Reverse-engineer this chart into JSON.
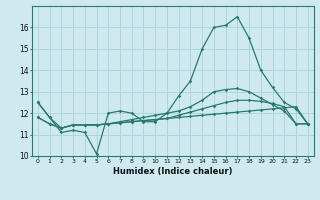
{
  "title": "",
  "xlabel": "Humidex (Indice chaleur)",
  "background_color": "#ceeaf0",
  "grid_color": "#aed4dc",
  "line_color": "#2a7a6a",
  "xlim": [
    -0.5,
    23.5
  ],
  "ylim": [
    10,
    17
  ],
  "xticks": [
    0,
    1,
    2,
    3,
    4,
    5,
    6,
    7,
    8,
    9,
    10,
    11,
    12,
    13,
    14,
    15,
    16,
    17,
    18,
    19,
    20,
    21,
    22,
    23
  ],
  "yticks": [
    10,
    11,
    12,
    13,
    14,
    15,
    16
  ],
  "series1_y": [
    12.5,
    11.8,
    11.1,
    11.2,
    11.1,
    10.1,
    12.0,
    12.1,
    12.0,
    11.6,
    11.6,
    12.0,
    12.8,
    13.5,
    15.0,
    16.0,
    16.1,
    16.5,
    15.5,
    14.0,
    13.2,
    12.5,
    12.2,
    11.5
  ],
  "series2_y": [
    11.8,
    11.5,
    11.3,
    11.45,
    11.45,
    11.45,
    11.5,
    11.55,
    11.6,
    11.65,
    11.7,
    11.75,
    11.8,
    11.85,
    11.9,
    11.95,
    12.0,
    12.05,
    12.1,
    12.15,
    12.2,
    12.25,
    12.3,
    11.5
  ],
  "series3_y": [
    11.8,
    11.5,
    11.3,
    11.45,
    11.45,
    11.45,
    11.5,
    11.55,
    11.6,
    11.65,
    11.7,
    11.75,
    11.9,
    12.05,
    12.2,
    12.35,
    12.5,
    12.6,
    12.6,
    12.55,
    12.45,
    12.3,
    11.5,
    11.5
  ],
  "series4_y": [
    12.5,
    11.8,
    11.3,
    11.45,
    11.45,
    11.45,
    11.5,
    11.6,
    11.7,
    11.8,
    11.9,
    12.0,
    12.1,
    12.3,
    12.6,
    13.0,
    13.1,
    13.15,
    13.0,
    12.7,
    12.4,
    12.1,
    11.5,
    11.5
  ]
}
